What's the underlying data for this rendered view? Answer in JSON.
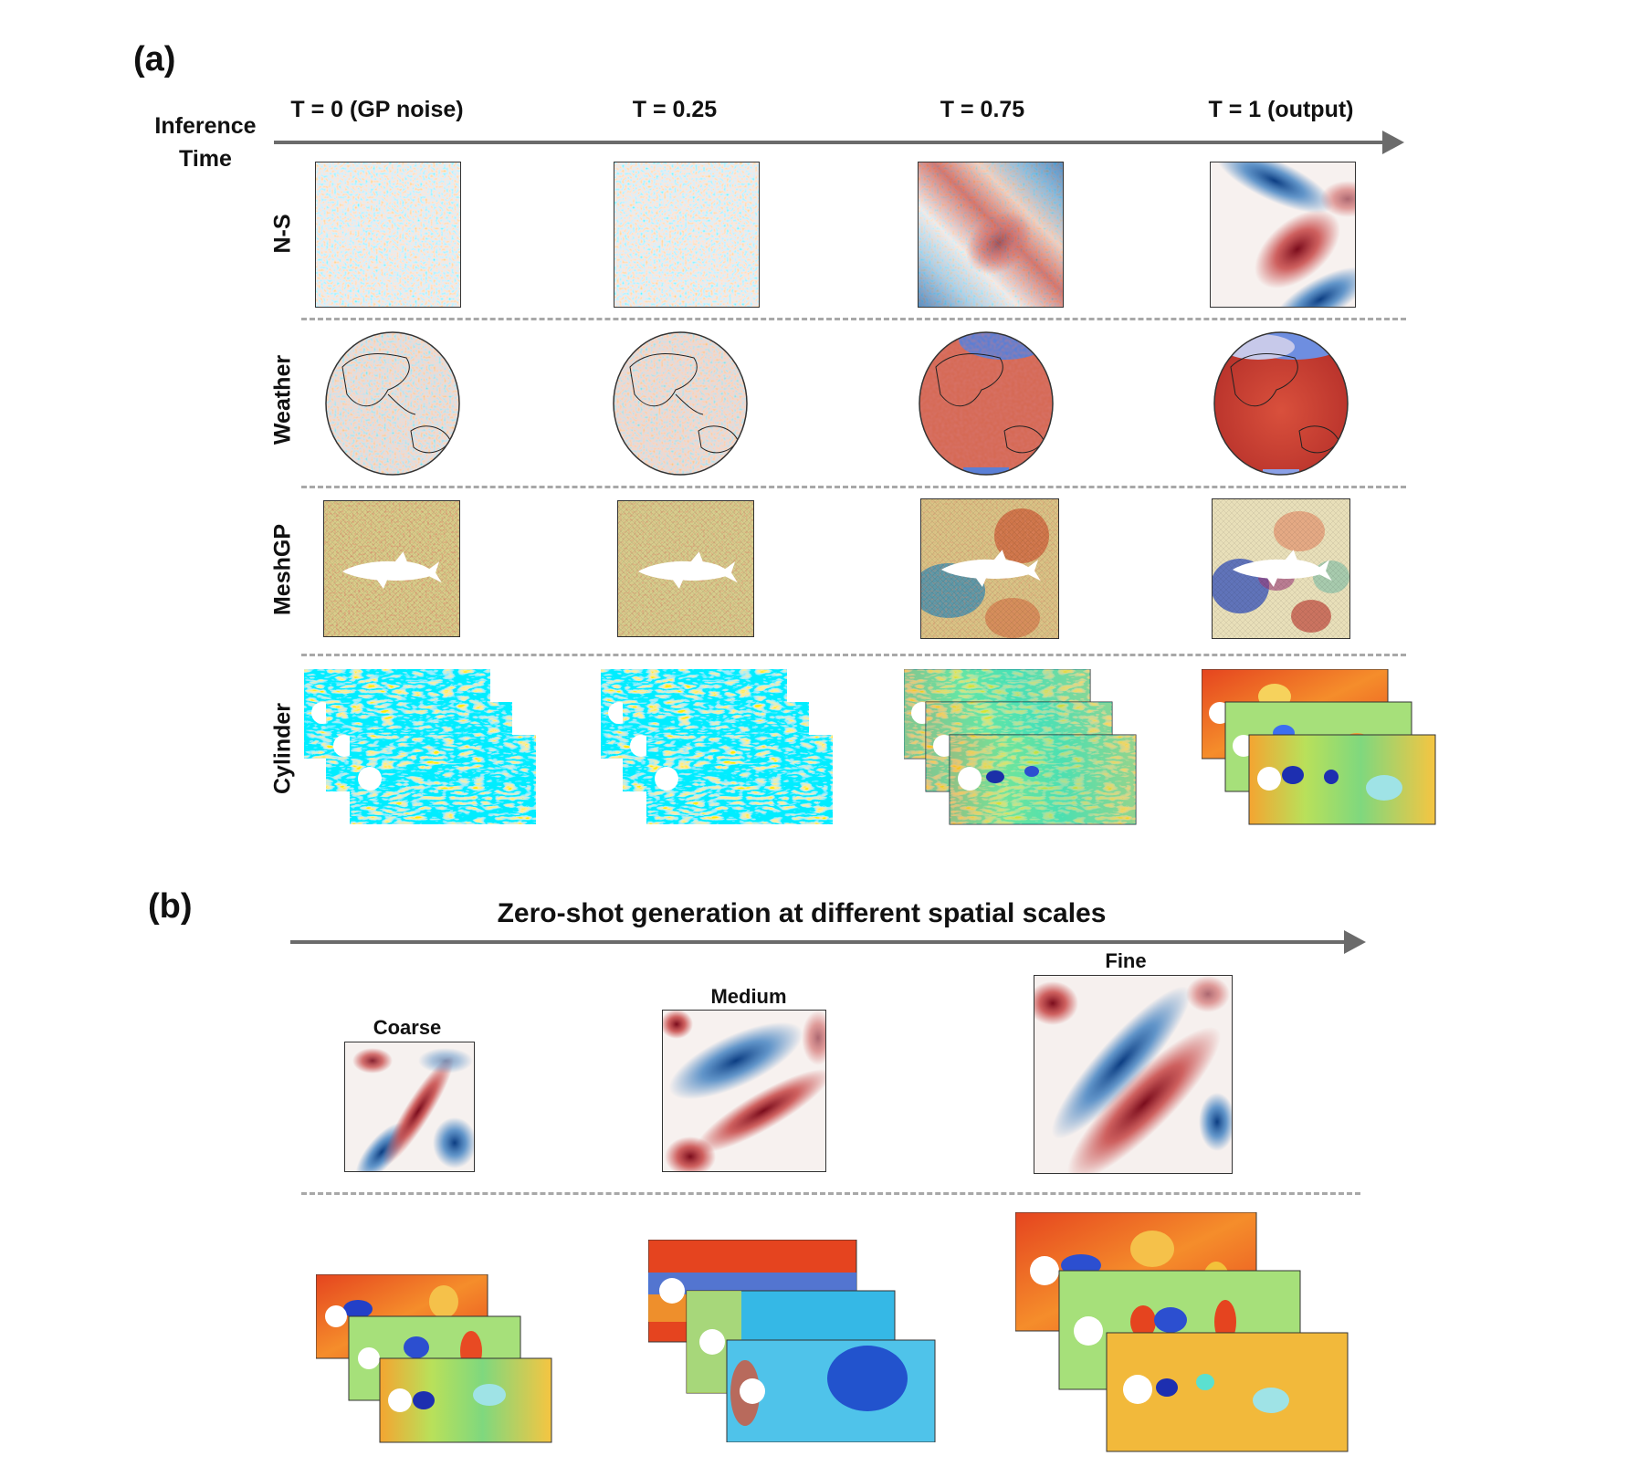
{
  "panel_a": {
    "label": "(a)",
    "axis_label_line1": "Inference",
    "axis_label_line2": "Time",
    "columns": [
      "T = 0 (GP noise)",
      "T = 0.25",
      "T = 0.75",
      "T = 1 (output)"
    ],
    "rows": [
      "N-S",
      "Weather",
      "MeshGP",
      "Cylinder"
    ]
  },
  "panel_b": {
    "label": "(b)",
    "title": "Zero-shot generation at different spatial scales",
    "scales": [
      "Coarse",
      "Medium",
      "Fine"
    ]
  }
}
